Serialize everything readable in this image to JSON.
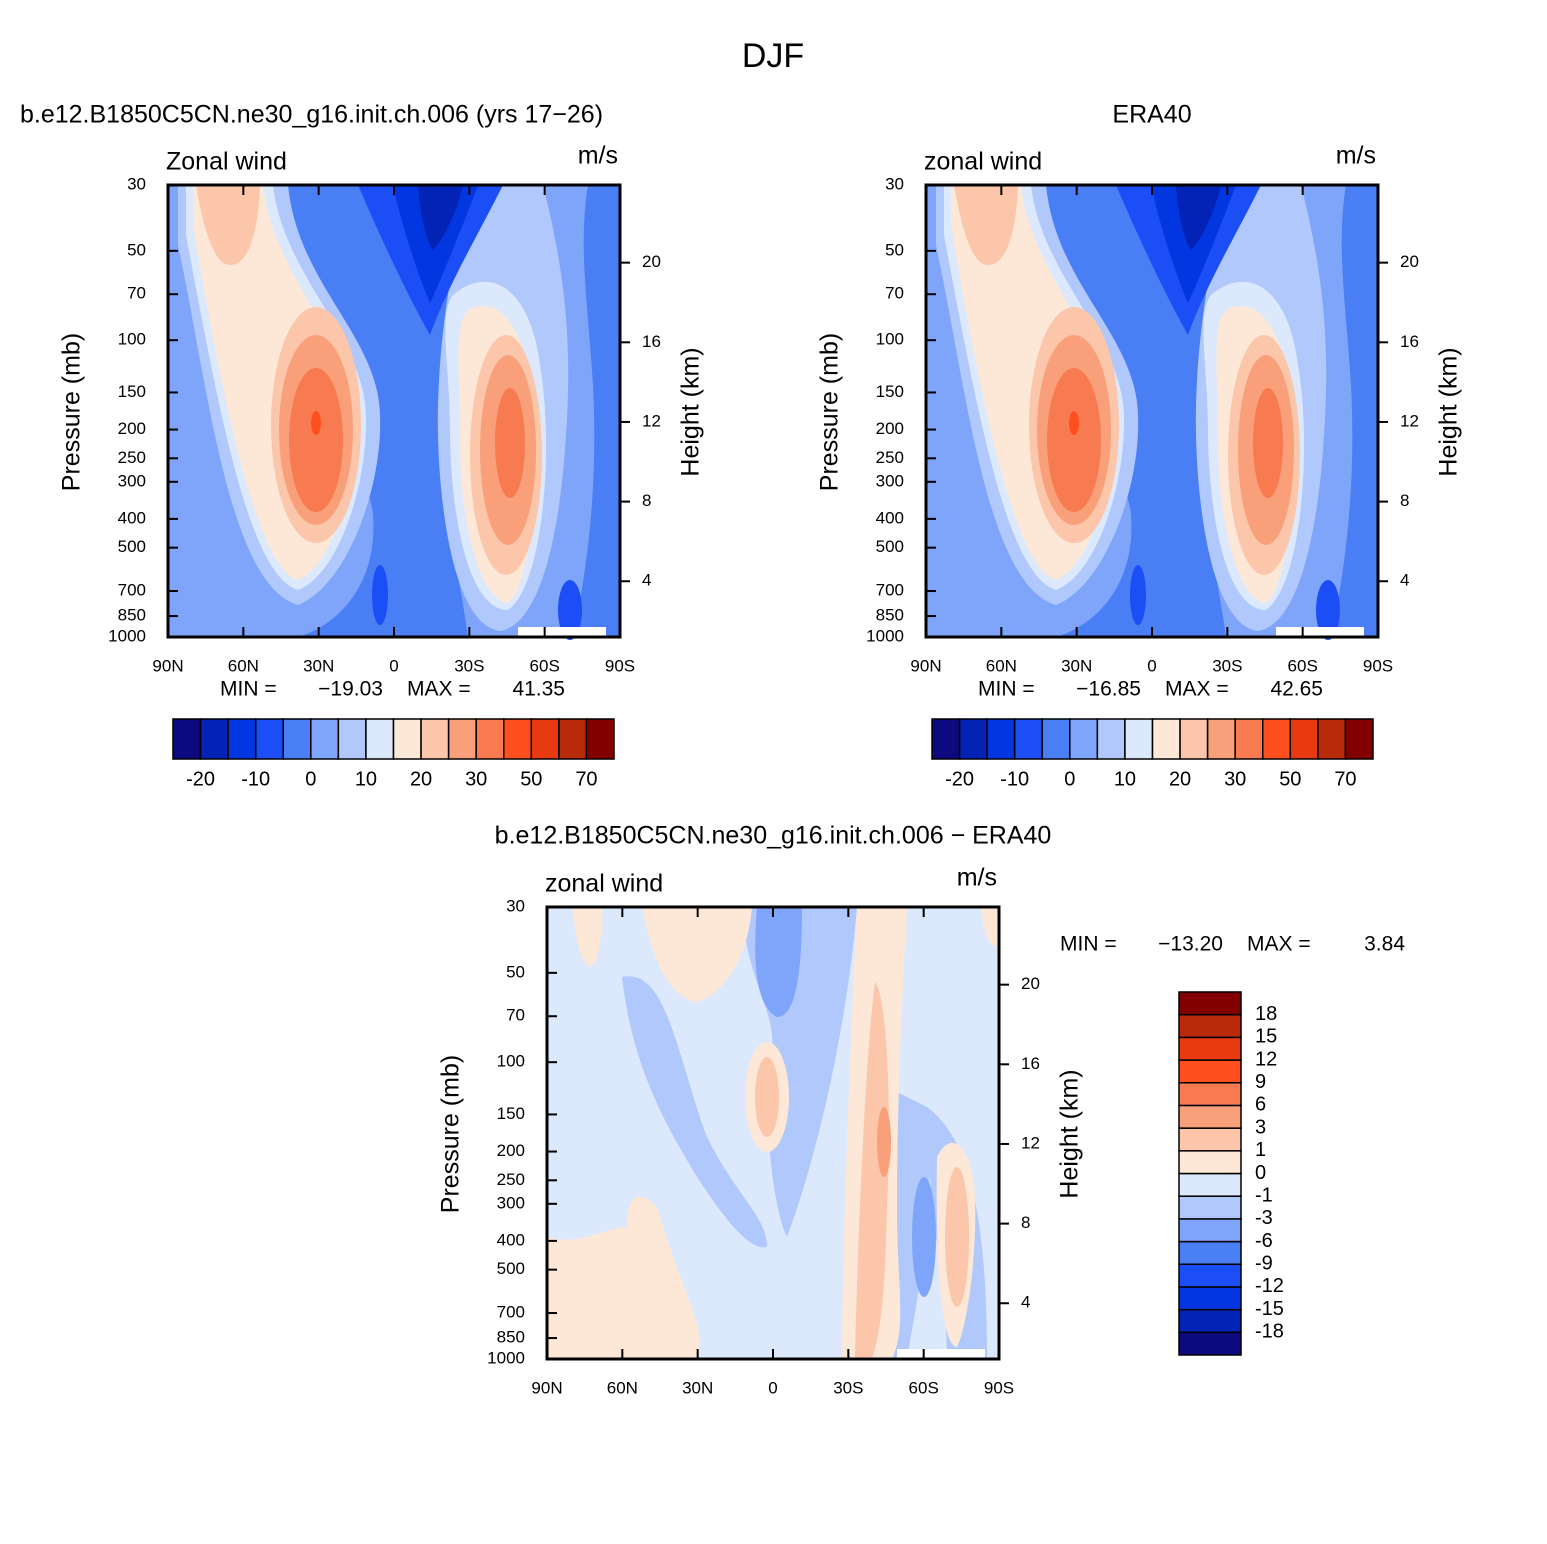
{
  "figure_title": "DJF",
  "chart_data": [
    {
      "type": "contour",
      "title": "b.e12.B1850C5CN.ne30_g16.init.ch.006 (yrs 17−26)",
      "left_label": "Zonal wind",
      "units": "m/s",
      "ylabel": "Pressure (mb)",
      "y2label": "Height (km)",
      "xlim": [
        90,
        -90
      ],
      "xticks": [
        {
          "value": 90,
          "label": "90N"
        },
        {
          "value": 60,
          "label": "60N"
        },
        {
          "value": 30,
          "label": "30N"
        },
        0,
        {
          "value": -30,
          "label": "30S"
        },
        {
          "value": -60,
          "label": "60S"
        },
        {
          "value": -90,
          "label": "90S"
        }
      ],
      "ylim": [
        1000,
        30
      ],
      "ylog": true,
      "yticks": [
        30,
        50,
        70,
        100,
        150,
        200,
        250,
        300,
        400,
        500,
        700,
        850,
        1000
      ],
      "y2lim": [
        1.2,
        23.9
      ],
      "y2ticks": [
        4,
        8,
        12,
        16,
        20
      ],
      "stats": {
        "min_label": "MIN =",
        "min": {
          "value": -19.03,
          "label": "−19.03"
        },
        "max_label": "MAX =",
        "max": {
          "value": 41.35,
          "label": "41.35"
        }
      },
      "colorbar": {
        "orientation": "horizontal",
        "levels": [
          -20,
          -10,
          0,
          10,
          20,
          30,
          50,
          70
        ],
        "colors": [
          "#0d0a80",
          "#0322b6",
          "#0236e0",
          "#1c4ef5",
          "#4a7ef5",
          "#7fa5fa",
          "#b0c8fc",
          "#dce9fd",
          "#fde8d8",
          "#fbc6aa",
          "#f9a07a",
          "#f77a50",
          "#ff4f1f",
          "#e83a10",
          "#b82a08",
          "#820000"
        ]
      }
    },
    {
      "type": "contour",
      "title": "ERA40",
      "left_label": "zonal wind",
      "units": "m/s",
      "ylabel": "Pressure (mb)",
      "y2label": "Height (km)",
      "xlim": [
        90,
        -90
      ],
      "xticks": [
        {
          "value": 90,
          "label": "90N"
        },
        {
          "value": 60,
          "label": "60N"
        },
        {
          "value": 30,
          "label": "30N"
        },
        0,
        {
          "value": -30,
          "label": "30S"
        },
        {
          "value": -60,
          "label": "60S"
        },
        {
          "value": -90,
          "label": "90S"
        }
      ],
      "ylim": [
        1000,
        30
      ],
      "ylog": true,
      "yticks": [
        30,
        50,
        70,
        100,
        150,
        200,
        250,
        300,
        400,
        500,
        700,
        850,
        1000
      ],
      "y2lim": [
        1.2,
        23.9
      ],
      "y2ticks": [
        4,
        8,
        12,
        16,
        20
      ],
      "stats": {
        "min_label": "MIN =",
        "min": {
          "value": -16.85,
          "label": "−16.85"
        },
        "max_label": "MAX =",
        "max": {
          "value": 42.65,
          "label": "42.65"
        }
      },
      "colorbar": {
        "orientation": "horizontal",
        "levels": [
          -20,
          -10,
          0,
          10,
          20,
          30,
          50,
          70
        ],
        "colors": [
          "#0d0a80",
          "#0322b6",
          "#0236e0",
          "#1c4ef5",
          "#4a7ef5",
          "#7fa5fa",
          "#b0c8fc",
          "#dce9fd",
          "#fde8d8",
          "#fbc6aa",
          "#f9a07a",
          "#f77a50",
          "#ff4f1f",
          "#e83a10",
          "#b82a08",
          "#820000"
        ]
      }
    },
    {
      "type": "contour",
      "title": "b.e12.B1850C5CN.ne30_g16.init.ch.006 − ERA40",
      "left_label": "zonal wind",
      "units": "m/s",
      "ylabel": "Pressure (mb)",
      "y2label": "Height (km)",
      "xlim": [
        90,
        -90
      ],
      "xticks": [
        {
          "value": 90,
          "label": "90N"
        },
        {
          "value": 60,
          "label": "60N"
        },
        {
          "value": 30,
          "label": "30N"
        },
        0,
        {
          "value": -30,
          "label": "30S"
        },
        {
          "value": -60,
          "label": "60S"
        },
        {
          "value": -90,
          "label": "90S"
        }
      ],
      "ylim": [
        1000,
        30
      ],
      "ylog": true,
      "yticks": [
        30,
        50,
        70,
        100,
        150,
        200,
        250,
        300,
        400,
        500,
        700,
        850,
        1000
      ],
      "y2lim": [
        1.2,
        23.9
      ],
      "y2ticks": [
        4,
        8,
        12,
        16,
        20
      ],
      "stats": {
        "min_label": "MIN =",
        "min": {
          "value": -13.2,
          "label": "−13.20"
        },
        "max_label": "MAX =",
        "max": {
          "value": 3.84,
          "label": "3.84"
        }
      },
      "colorbar": {
        "orientation": "vertical",
        "levels": [
          -18,
          -15,
          -12,
          -9,
          -6,
          -3,
          -1,
          0,
          1,
          3,
          6,
          9,
          12,
          15,
          18
        ],
        "colors": [
          "#0d0a80",
          "#0322b6",
          "#0236e0",
          "#1c4ef5",
          "#4a7ef5",
          "#7fa5fa",
          "#b0c8fc",
          "#dce9fd",
          "#fde8d8",
          "#fbc6aa",
          "#f9a07a",
          "#f77a50",
          "#ff4f1f",
          "#e83a10",
          "#b82a08",
          "#820000"
        ]
      }
    }
  ]
}
